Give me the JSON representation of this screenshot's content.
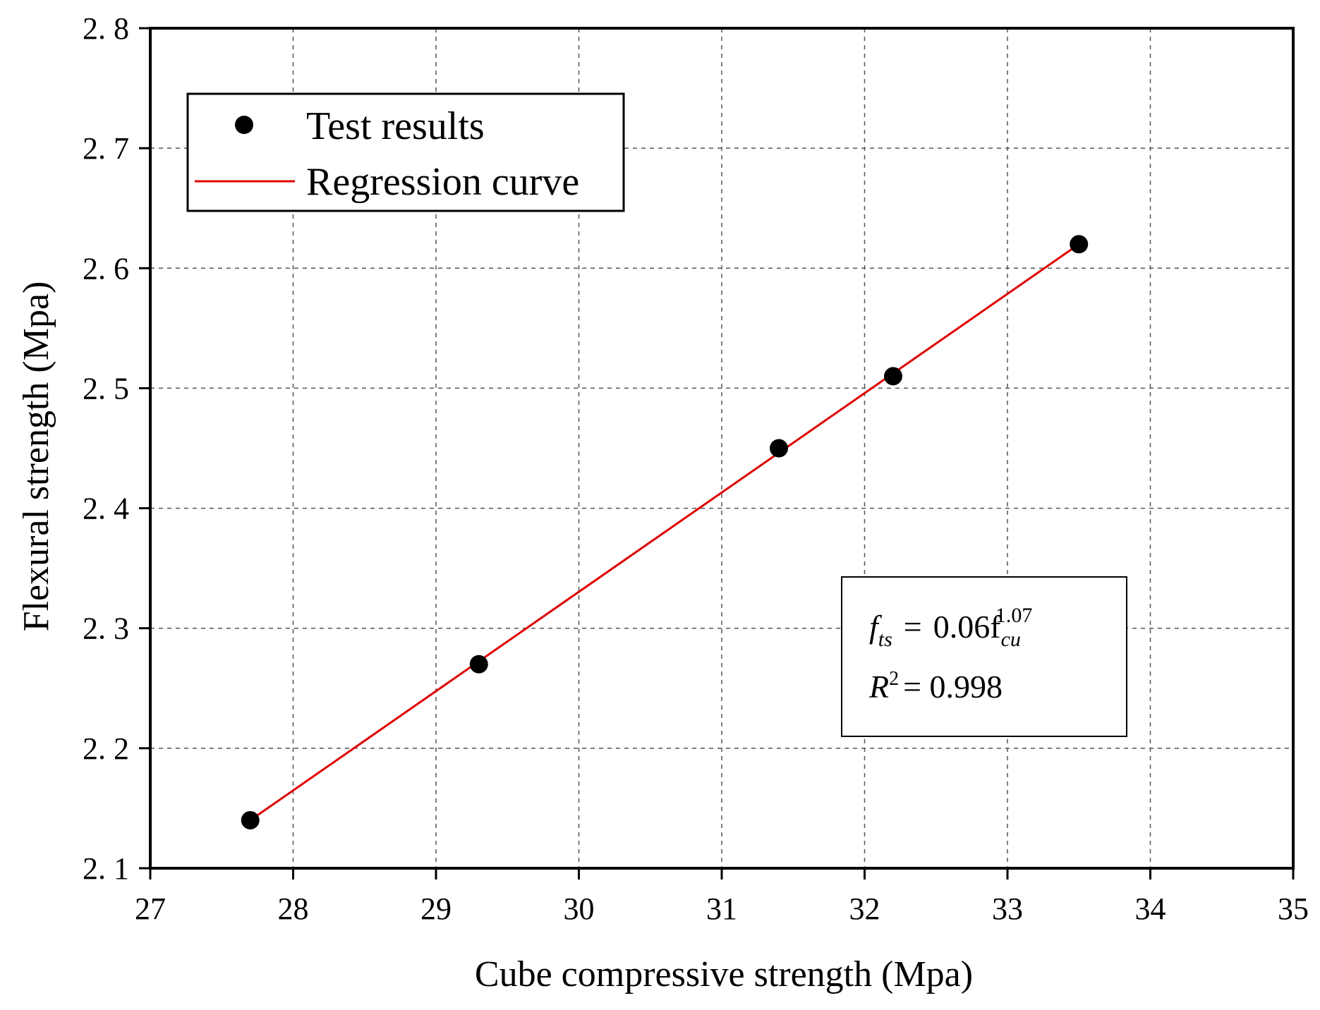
{
  "chart_data": {
    "type": "scatter",
    "title": "",
    "xlabel": "Cube compressive strength (Mpa)",
    "ylabel": "Flexural strength (Mpa)",
    "xlim": [
      27,
      35
    ],
    "ylim": [
      2.1,
      2.8
    ],
    "x_ticks": [
      27,
      28,
      29,
      30,
      31,
      32,
      33,
      34,
      35
    ],
    "y_ticks": [
      2.1,
      2.2,
      2.3,
      2.4,
      2.5,
      2.6,
      2.7,
      2.8
    ],
    "x_tick_labels": [
      "27",
      "28",
      "29",
      "30",
      "31",
      "32",
      "33",
      "34",
      "35"
    ],
    "y_tick_labels": [
      "2. 1",
      "2. 2",
      "2. 3",
      "2. 4",
      "2. 5",
      "2. 6",
      "2. 7",
      "2. 8"
    ],
    "grid": true,
    "legend_position": "top-left",
    "series": [
      {
        "name": "Test results",
        "kind": "scatter",
        "color": "#000000",
        "x": [
          27.7,
          29.3,
          31.4,
          32.2,
          33.5
        ],
        "y": [
          2.14,
          2.27,
          2.45,
          2.51,
          2.62
        ]
      },
      {
        "name": "Regression curve",
        "kind": "line",
        "color": "#e00000",
        "x": [
          27.7,
          33.5
        ],
        "y": [
          2.14,
          2.62
        ]
      }
    ],
    "annotation": {
      "equation": {
        "lhs_base": "f",
        "lhs_sub": "ts",
        "equals": "=",
        "coef": "0.06f",
        "rhs_sub": "cu",
        "rhs_sup": "1.07"
      },
      "r2": {
        "base": "R",
        "sup": "2",
        "value": "= 0.998"
      }
    }
  }
}
